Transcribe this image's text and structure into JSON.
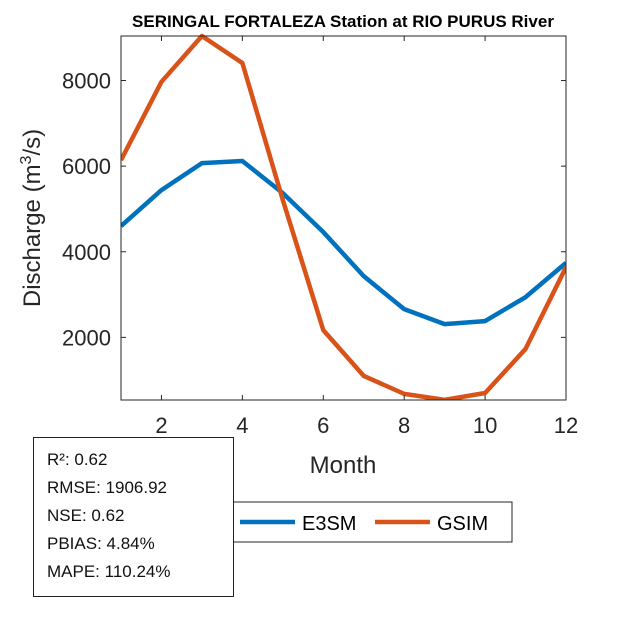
{
  "chart_data": {
    "type": "line",
    "title": "SERINGAL FORTALEZA  Station at  RIO PURUS  River",
    "xlabel": "Month",
    "ylabel": "Discharge (m3/s)",
    "ylabel_main": "Discharge (m",
    "ylabel_sup": "3",
    "ylabel_end": "/s)",
    "x": [
      1,
      2,
      3,
      4,
      5,
      6,
      7,
      8,
      9,
      10,
      11,
      12
    ],
    "xlim": [
      1,
      12
    ],
    "ylim": [
      537,
      9040
    ],
    "xticks": [
      2,
      4,
      6,
      8,
      10,
      12
    ],
    "yticks": [
      2000,
      4000,
      6000,
      8000
    ],
    "grid": false,
    "legend_placement": "bottom-center",
    "series": [
      {
        "name": "E3SM",
        "color": "#0072BD",
        "values": [
          4600,
          5440,
          6070,
          6120,
          5370,
          4460,
          3430,
          2660,
          2310,
          2380,
          2940,
          3740
        ]
      },
      {
        "name": "GSIM",
        "color": "#D95319",
        "values": [
          6140,
          7970,
          9040,
          8410,
          5210,
          2170,
          1100,
          680,
          540,
          700,
          1730,
          3640
        ]
      }
    ]
  },
  "stats": [
    "R²: 0.62",
    "RMSE: 1906.92",
    "NSE: 0.62",
    "PBIAS: 4.84%",
    "MAPE: 110.24%"
  ]
}
